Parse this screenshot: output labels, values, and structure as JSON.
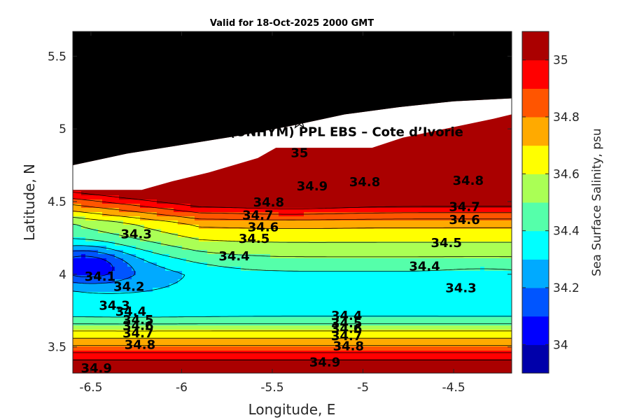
{
  "chart_data": {
    "type": "heatmap",
    "subtype": "filled-contour",
    "title": "Valid for 18-Oct-2025 2000 GMT",
    "xlabel": "Longitude, E",
    "ylabel": "Latitude, N",
    "xlim": [
      -6.6,
      -4.18
    ],
    "ylim": [
      3.32,
      5.67
    ],
    "xticks": [
      -6.5,
      -6,
      -5.5,
      -5,
      -4.5
    ],
    "yticks": [
      3.5,
      4,
      4.5,
      5,
      5.5
    ],
    "xtick_labels": [
      "-6.5",
      "-6",
      "-5.5",
      "-5",
      "-4.5"
    ],
    "ytick_labels": [
      "3.5",
      "4",
      "4.5",
      "5",
      "5.5"
    ],
    "colorbar": {
      "label": "Sea Surface Salinity, psu",
      "range": [
        33.9,
        35.1
      ],
      "ticks": [
        34,
        34.2,
        34.4,
        34.6,
        34.8,
        35
      ],
      "tick_labels": [
        "34",
        "34.2",
        "34.4",
        "34.6",
        "34.8",
        "35"
      ],
      "levels": [
        33.9,
        34.0,
        34.1,
        34.2,
        34.3,
        34.4,
        34.5,
        34.6,
        34.7,
        34.8,
        34.9,
        35.0,
        35.1
      ],
      "colors": [
        "#0000aa",
        "#0000ff",
        "#0055ff",
        "#00aaff",
        "#00ffff",
        "#55ffaa",
        "#aaff55",
        "#ffff00",
        "#ffaa00",
        "#ff5500",
        "#ff0000",
        "#aa0000"
      ]
    },
    "land_color": "#000000",
    "nodata_color": "#ffffff",
    "station": {
      "label": "A (ONHYM) PPL EBS  – Cote d’Ivorie",
      "lon": -5.35,
      "lat": 5.05,
      "marker": "star"
    },
    "contour_labels": [
      {
        "text": "35",
        "lon": -5.35,
        "lat": 4.83
      },
      {
        "text": "34.9",
        "lon": -5.28,
        "lat": 4.6
      },
      {
        "text": "34.8",
        "lon": -4.99,
        "lat": 4.63
      },
      {
        "text": "34.8",
        "lon": -4.42,
        "lat": 4.64
      },
      {
        "text": "34.8",
        "lon": -5.52,
        "lat": 4.49
      },
      {
        "text": "34.7",
        "lon": -5.58,
        "lat": 4.4
      },
      {
        "text": "34.7",
        "lon": -4.44,
        "lat": 4.46
      },
      {
        "text": "34.6",
        "lon": -5.55,
        "lat": 4.32
      },
      {
        "text": "34.6",
        "lon": -4.44,
        "lat": 4.37
      },
      {
        "text": "34.5",
        "lon": -5.6,
        "lat": 4.24
      },
      {
        "text": "34.5",
        "lon": -4.54,
        "lat": 4.21
      },
      {
        "text": "34.4",
        "lon": -5.71,
        "lat": 4.12
      },
      {
        "text": "34.4",
        "lon": -4.66,
        "lat": 4.05
      },
      {
        "text": "34.3",
        "lon": -6.25,
        "lat": 4.27
      },
      {
        "text": "34.3",
        "lon": -4.46,
        "lat": 3.9
      },
      {
        "text": "34.2",
        "lon": -6.29,
        "lat": 3.91
      },
      {
        "text": "34.1",
        "lon": -6.45,
        "lat": 3.98
      },
      {
        "text": "34.3",
        "lon": -6.37,
        "lat": 3.78
      },
      {
        "text": "34.4",
        "lon": -6.28,
        "lat": 3.74
      },
      {
        "text": "34.5",
        "lon": -6.24,
        "lat": 3.68
      },
      {
        "text": "34.6",
        "lon": -6.24,
        "lat": 3.64
      },
      {
        "text": "34.7",
        "lon": -6.24,
        "lat": 3.59
      },
      {
        "text": "34.8",
        "lon": -6.23,
        "lat": 3.51
      },
      {
        "text": "34.9",
        "lon": -6.47,
        "lat": 3.35
      },
      {
        "text": "34.4",
        "lon": -5.09,
        "lat": 3.71
      },
      {
        "text": "34.5",
        "lon": -5.09,
        "lat": 3.66
      },
      {
        "text": "34.6",
        "lon": -5.09,
        "lat": 3.62
      },
      {
        "text": "34.7",
        "lon": -5.09,
        "lat": 3.57
      },
      {
        "text": "34.8",
        "lon": -5.08,
        "lat": 3.5
      },
      {
        "text": "34.9",
        "lon": -5.21,
        "lat": 3.39
      }
    ]
  }
}
